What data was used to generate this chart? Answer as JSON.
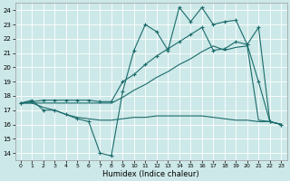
{
  "xlabel": "Humidex (Indice chaleur)",
  "bg_color": "#cde8e8",
  "grid_color": "#b0d4d4",
  "line_color": "#1a6b6b",
  "xlim": [
    -0.5,
    23.5
  ],
  "ylim": [
    13.5,
    24.5
  ],
  "yticks": [
    14,
    15,
    16,
    17,
    18,
    19,
    20,
    21,
    22,
    23,
    24
  ],
  "xticks": [
    0,
    1,
    2,
    3,
    4,
    5,
    6,
    7,
    8,
    9,
    10,
    11,
    12,
    13,
    14,
    15,
    16,
    17,
    18,
    19,
    20,
    21,
    22,
    23
  ],
  "line_jagged": {
    "x": [
      0,
      1,
      2,
      3,
      4,
      5,
      6,
      7,
      8,
      9,
      10,
      11,
      12,
      13,
      14,
      15,
      16,
      17,
      18,
      19,
      20,
      21,
      22,
      23
    ],
    "y": [
      17.5,
      17.7,
      17.0,
      17.0,
      16.7,
      16.4,
      16.2,
      14.0,
      13.8,
      18.3,
      21.2,
      23.0,
      22.5,
      21.2,
      24.2,
      23.2,
      24.2,
      23.0,
      23.2,
      23.3,
      21.6,
      19.0,
      16.2,
      16.0
    ]
  },
  "line_upper": {
    "x": [
      0,
      1,
      2,
      3,
      4,
      5,
      6,
      7,
      8,
      9,
      10,
      11,
      12,
      13,
      14,
      15,
      16,
      17,
      18,
      19,
      20,
      21,
      22,
      23
    ],
    "y": [
      17.5,
      17.6,
      17.7,
      17.7,
      17.7,
      17.7,
      17.7,
      17.6,
      17.6,
      19.0,
      19.5,
      20.2,
      20.8,
      21.3,
      21.8,
      22.3,
      22.8,
      21.2,
      21.3,
      21.8,
      21.6,
      22.8,
      16.2,
      16.0
    ]
  },
  "line_mid": {
    "x": [
      0,
      1,
      2,
      3,
      4,
      5,
      6,
      7,
      8,
      9,
      10,
      11,
      12,
      13,
      14,
      15,
      16,
      17,
      18,
      19,
      20,
      21,
      22,
      23
    ],
    "y": [
      17.5,
      17.5,
      17.5,
      17.5,
      17.5,
      17.5,
      17.5,
      17.5,
      17.5,
      17.9,
      18.4,
      18.8,
      19.3,
      19.7,
      20.2,
      20.6,
      21.1,
      21.5,
      21.2,
      21.4,
      21.5,
      16.3,
      16.2,
      16.0
    ]
  },
  "line_lower": {
    "x": [
      0,
      1,
      2,
      3,
      4,
      5,
      6,
      7,
      8,
      9,
      10,
      11,
      12,
      13,
      14,
      15,
      16,
      17,
      18,
      19,
      20,
      21,
      22,
      23
    ],
    "y": [
      17.5,
      17.5,
      17.2,
      17.0,
      16.7,
      16.5,
      16.4,
      16.3,
      16.3,
      16.4,
      16.5,
      16.5,
      16.6,
      16.6,
      16.6,
      16.6,
      16.6,
      16.5,
      16.4,
      16.3,
      16.3,
      16.2,
      16.2,
      16.0
    ]
  }
}
